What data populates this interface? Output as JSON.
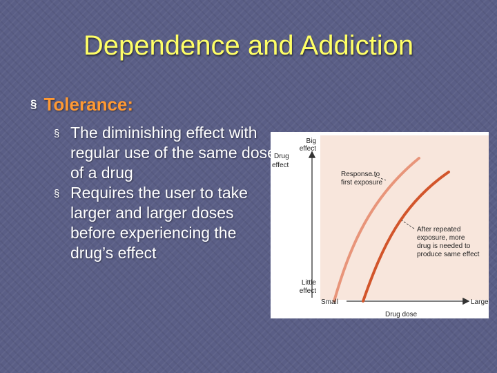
{
  "slide": {
    "title": "Dependence and Addiction",
    "bullet": "Tolerance:",
    "sub_bullets": [
      "The diminishing effect with regular use of the same dose of a drug",
      "Requires the user to take larger and larger doses before experiencing the drug’s effect"
    ],
    "bullet_marker": "§"
  },
  "diagram": {
    "y_axis_title": [
      "Drug",
      "effect"
    ],
    "y_top_label": [
      "Big",
      "effect"
    ],
    "y_bottom_label": [
      "Little",
      "effect"
    ],
    "x_left_label": "Small",
    "x_right_label": "Large",
    "x_axis_title": "Drug dose",
    "callout_first": [
      "Response to",
      "first exposure"
    ],
    "callout_repeated": [
      "After repeated",
      "exposure, more",
      "drug is needed to",
      "produce same effect"
    ],
    "colors": {
      "curve_first": "#e8957a",
      "curve_repeated": "#d2552b",
      "panel": "#f8e6dc",
      "axis": "#333333"
    }
  }
}
